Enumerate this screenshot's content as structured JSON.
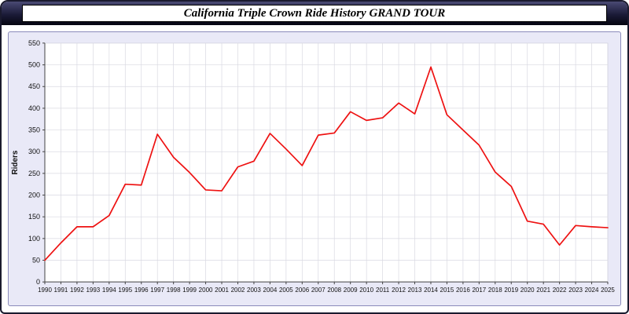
{
  "window": {
    "title": "California Triple Crown Ride History GRAND TOUR"
  },
  "chart_data": {
    "type": "line",
    "title": "California Triple Crown Ride History GRAND TOUR",
    "xlabel": "",
    "ylabel": "Riders",
    "ylim": [
      0,
      550
    ],
    "ytick_step": 50,
    "grid": true,
    "legend_position": "none",
    "plot_bg": "#ffffff",
    "panel_bg": "#e9e9f7",
    "grid_color": "#d9d9e2",
    "axis_color": "#444444",
    "x": [
      1990,
      1991,
      1992,
      1993,
      1994,
      1995,
      1996,
      1997,
      1998,
      1999,
      2000,
      2001,
      2002,
      2003,
      2004,
      2005,
      2006,
      2007,
      2008,
      2009,
      2010,
      2011,
      2012,
      2013,
      2014,
      2015,
      2016,
      2017,
      2018,
      2019,
      2020,
      2021,
      2022,
      2023,
      2024,
      2025
    ],
    "series": [
      {
        "name": "Riders",
        "color": "#ee1111",
        "values": [
          50,
          90,
          127,
          127,
          153,
          225,
          223,
          340,
          287,
          252,
          212,
          210,
          265,
          278,
          342,
          306,
          268,
          338,
          343,
          392,
          372,
          378,
          412,
          387,
          495,
          385,
          350,
          315,
          253,
          220,
          140,
          133,
          85,
          130,
          127,
          125
        ]
      }
    ]
  }
}
